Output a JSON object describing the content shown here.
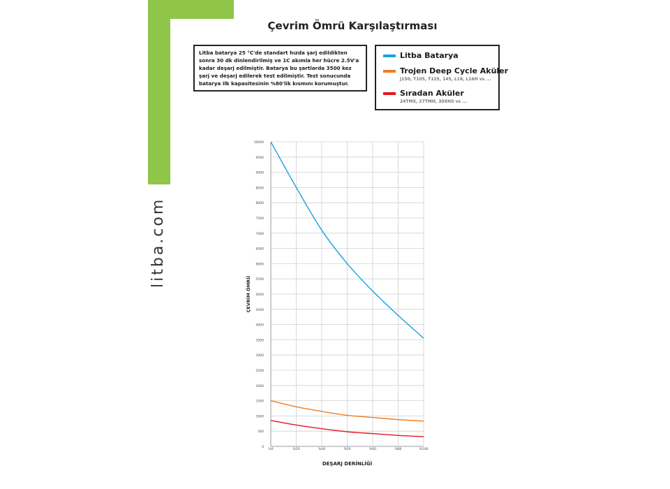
{
  "site": "litba.com",
  "note": "Litba batarya 25 °C'de standart hızda şarj edildikten sonra 30 dk dinlendirilmiş ve 1C akımla her hücre 2.5V'a kadar deşarj edilmiştir. Batarya bu şartlarda 3500 kez şarj ve deşarj edilerek test edilmiştir. Test sonucunda batarya ilk kapasitesinin %80'lik kısmını korumuştur.",
  "legend": [
    {
      "label": "Litba Batarya",
      "sub": "",
      "color": "#1ba1dc"
    },
    {
      "label": "Trojen Deep Cycle Aküler",
      "sub": "J150, T105, T125, 145, L16, L16H vs ...",
      "color": "#f07c22"
    },
    {
      "label": "Sıradan Aküler",
      "sub": "24TMX, 27TMH, 30XHS vs ...",
      "color": "#e3161f"
    }
  ],
  "colors": {
    "accent_green": "#8fc549",
    "grid": "#d0d0d0"
  },
  "chart_data": {
    "type": "line",
    "title": "Çevrim Ömrü Karşılaştırması",
    "xlabel": "DEŞARJ DERİNLİĞİ",
    "ylabel": "ÇEVRİM ÖMRÜ",
    "xticks": [
      "%0",
      "%20",
      "%40",
      "%50",
      "%60",
      "%80",
      "%100"
    ],
    "yticks": [
      "0",
      "500",
      "1000",
      "1500",
      "2000",
      "2500",
      "3000",
      "3500",
      "4000",
      "4500",
      "5000",
      "5500",
      "6000",
      "6500",
      "7000",
      "7500",
      "8000",
      "8500",
      "9000",
      "9500",
      "10000"
    ],
    "ylim": [
      0,
      10000
    ],
    "grid": true,
    "series": [
      {
        "name": "Litba Batarya",
        "color": "#1ba1dc",
        "x": [
          0,
          1,
          2,
          3,
          4,
          5,
          6
        ],
        "y": [
          10000,
          8500,
          7100,
          6000,
          5100,
          4300,
          3550
        ]
      },
      {
        "name": "Trojen Deep Cycle Aküler",
        "color": "#f07c22",
        "x": [
          0,
          1,
          2,
          3,
          4,
          5,
          6
        ],
        "y": [
          1500,
          1300,
          1150,
          1020,
          950,
          880,
          830
        ]
      },
      {
        "name": "Sıradan Aküler",
        "color": "#e3161f",
        "x": [
          0,
          1,
          2,
          3,
          4,
          5,
          6
        ],
        "y": [
          850,
          700,
          580,
          480,
          420,
          360,
          320
        ]
      }
    ]
  }
}
